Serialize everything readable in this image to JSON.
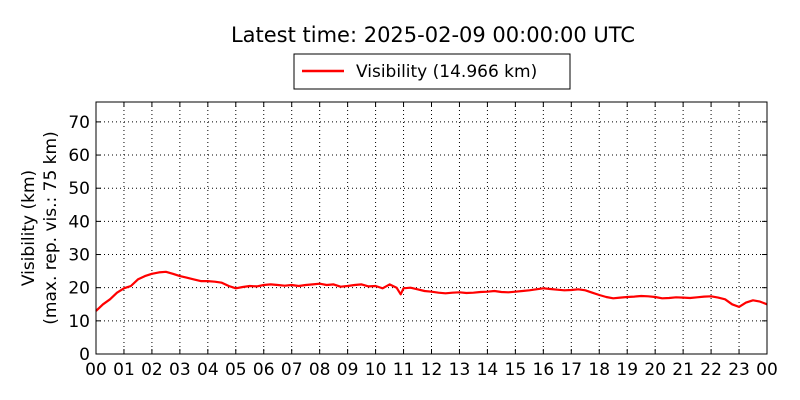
{
  "chart_data": {
    "type": "line",
    "title": "Latest time: 2025-02-09 00:00:00 UTC",
    "ylabel": [
      "Visibility (km)",
      "(max. rep. vis.: 75 km)"
    ],
    "xlabel": "",
    "ylim": [
      0,
      76
    ],
    "xlim": [
      0,
      24
    ],
    "grid": true,
    "grid_style": "dotted",
    "legend_position": "top-center",
    "y_ticks": [
      0,
      10,
      20,
      30,
      40,
      50,
      60,
      70
    ],
    "x_tick_labels": [
      "00",
      "01",
      "02",
      "03",
      "04",
      "05",
      "06",
      "07",
      "08",
      "09",
      "10",
      "11",
      "12",
      "13",
      "14",
      "15",
      "16",
      "17",
      "18",
      "19",
      "20",
      "21",
      "22",
      "23",
      "00"
    ],
    "series": [
      {
        "name": "Visibility (14.966 km)",
        "color": "#ff0000",
        "x": [
          0,
          0.25,
          0.5,
          0.75,
          1.0,
          1.25,
          1.5,
          1.75,
          2.0,
          2.25,
          2.5,
          2.75,
          3.0,
          3.25,
          3.5,
          3.75,
          4.0,
          4.25,
          4.5,
          4.75,
          5.0,
          5.25,
          5.5,
          5.75,
          6.0,
          6.25,
          6.5,
          6.75,
          7.0,
          7.25,
          7.5,
          7.75,
          8.0,
          8.25,
          8.5,
          8.75,
          9.0,
          9.25,
          9.5,
          9.75,
          10.0,
          10.25,
          10.5,
          10.75,
          10.9,
          11.0,
          11.25,
          11.5,
          11.75,
          12.0,
          12.25,
          12.5,
          12.75,
          13.0,
          13.25,
          13.5,
          13.75,
          14.0,
          14.25,
          14.5,
          14.75,
          15.0,
          15.25,
          15.5,
          15.75,
          16.0,
          16.25,
          16.5,
          16.75,
          17.0,
          17.25,
          17.5,
          17.75,
          18.0,
          18.25,
          18.5,
          18.75,
          19.0,
          19.25,
          19.5,
          19.75,
          20.0,
          20.25,
          20.5,
          20.75,
          21.0,
          21.25,
          21.5,
          21.75,
          22.0,
          22.25,
          22.5,
          22.75,
          23.0,
          23.25,
          23.5,
          23.75,
          24.0
        ],
        "values": [
          13,
          15,
          16.5,
          18.5,
          19.8,
          20.5,
          22.5,
          23.5,
          24.2,
          24.6,
          24.8,
          24.2,
          23.5,
          23.0,
          22.5,
          22.0,
          22.0,
          21.8,
          21.5,
          20.5,
          19.8,
          20.2,
          20.5,
          20.4,
          20.8,
          21.0,
          20.8,
          20.6,
          20.8,
          20.5,
          20.8,
          21.0,
          21.2,
          20.8,
          21.0,
          20.3,
          20.5,
          20.8,
          21.0,
          20.4,
          20.5,
          19.8,
          21.0,
          20.0,
          18.0,
          19.8,
          20.0,
          19.5,
          19.0,
          18.8,
          18.5,
          18.3,
          18.5,
          18.6,
          18.4,
          18.5,
          18.7,
          18.8,
          19.0,
          18.7,
          18.6,
          18.8,
          19.0,
          19.2,
          19.5,
          19.8,
          19.6,
          19.4,
          19.2,
          19.3,
          19.5,
          19.2,
          18.5,
          17.8,
          17.2,
          16.8,
          17.0,
          17.2,
          17.3,
          17.5,
          17.4,
          17.2,
          16.8,
          16.9,
          17.1,
          17.0,
          16.9,
          17.1,
          17.3,
          17.4,
          17.0,
          16.5,
          15.0,
          14.2,
          15.5,
          16.2,
          15.8,
          15.0
        ]
      }
    ]
  }
}
